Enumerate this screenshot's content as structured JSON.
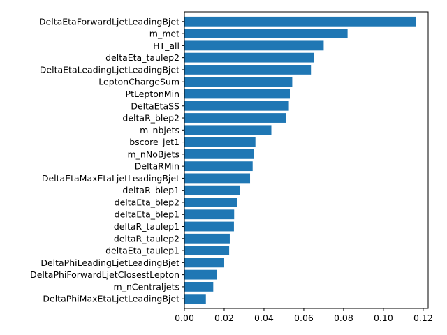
{
  "chart_data": {
    "type": "bar",
    "orientation": "horizontal",
    "title": "",
    "xlabel": "",
    "ylabel": "",
    "xlim": [
      0,
      0.1225
    ],
    "xticks": [
      0.0,
      0.02,
      0.04,
      0.06,
      0.08,
      0.1,
      0.12
    ],
    "xtick_labels": [
      "0.00",
      "0.02",
      "0.04",
      "0.06",
      "0.08",
      "0.10",
      "0.12"
    ],
    "grid": false,
    "color": "#1f77b4",
    "categories": [
      "DeltaEtaForwardLjetLeadingBjet",
      "m_met",
      "HT_all",
      "deltaEta_taulep2",
      "DeltaEtaLeadingLjetLeadingBjet",
      "LeptonChargeSum",
      "PtLeptonMin",
      "DeltaEtaSS",
      "deltaR_blep2",
      "m_nbjets",
      "bscore_jet1",
      "m_nNoBjets",
      "DeltaRMin",
      "DeltaEtaMaxEtaLjetLeadingBjet",
      "deltaR_blep1",
      "deltaEta_blep2",
      "deltaEta_blep1",
      "deltaR_taulep1",
      "deltaR_taulep2",
      "deltaEta_taulep1",
      "DeltaPhiLeadingLjetLeadingBjet",
      "DeltaPhiForwardLjetClosestLepton",
      "m_nCentraljets",
      "DeltaPhiMaxEtaLjetLeadingBjet"
    ],
    "values": [
      0.1165,
      0.082,
      0.07,
      0.0652,
      0.0636,
      0.0542,
      0.053,
      0.0525,
      0.0512,
      0.0437,
      0.0357,
      0.035,
      0.0343,
      0.033,
      0.0278,
      0.0266,
      0.025,
      0.0249,
      0.0228,
      0.0225,
      0.02,
      0.0162,
      0.0145,
      0.0108
    ]
  }
}
